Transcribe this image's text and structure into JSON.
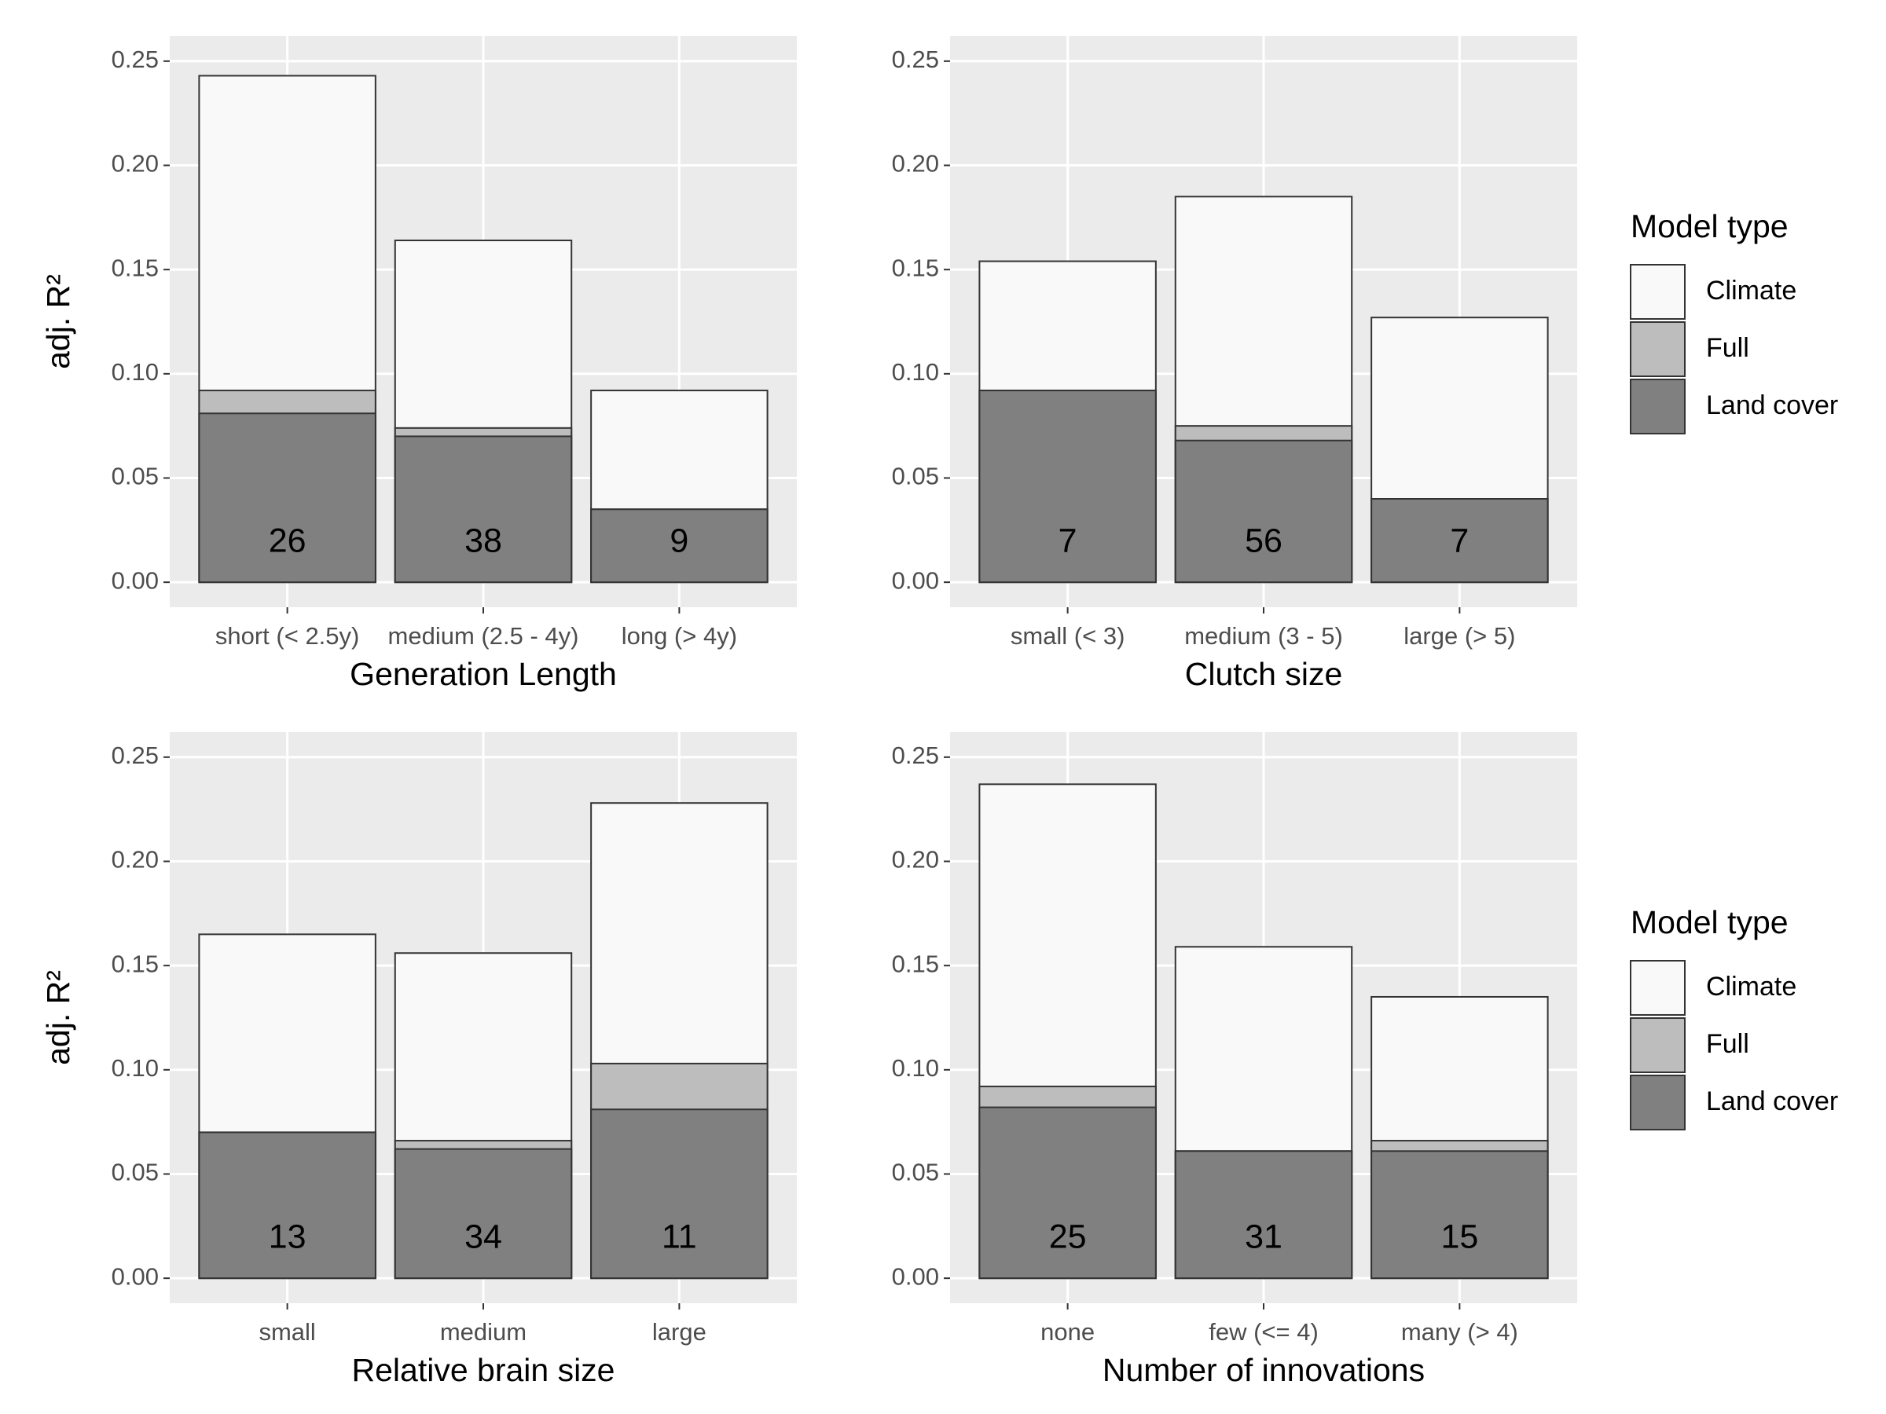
{
  "chart_data": [
    {
      "type": "bar",
      "xlabel": "Generation Length",
      "ylabel": "adj. R²",
      "categories": [
        "short (< 2.5y)",
        "medium (2.5 - 4y)",
        "long (> 4y)"
      ],
      "series": [
        {
          "color": "#f9f9f9",
          "values": [
            0.243,
            0.164,
            0.092
          ]
        },
        {
          "color": "#bdbdbd",
          "values": [
            0.092,
            0.074,
            0.035
          ]
        },
        {
          "color": "#808080",
          "values": [
            0.081,
            0.07,
            0.035
          ]
        }
      ],
      "counts": [
        26,
        38,
        9
      ],
      "ylim": [
        -0.012,
        0.262
      ],
      "yticks": [
        {
          "value": 0,
          "label": "0.00"
        },
        {
          "value": 0.05,
          "label": "0.05"
        },
        {
          "value": 0.1,
          "label": "0.10"
        },
        {
          "value": 0.15,
          "label": "0.15"
        },
        {
          "value": 0.2,
          "label": "0.20"
        },
        {
          "value": 0.25,
          "label": "0.25"
        }
      ],
      "grid": true
    },
    {
      "type": "bar",
      "xlabel": "Clutch size",
      "legend_title": "Model type",
      "legend": "right",
      "categories": [
        "small (< 3)",
        "medium (3 - 5)",
        "large (> 5)"
      ],
      "series": [
        {
          "name": "Climate",
          "color": "#f9f9f9",
          "values": [
            0.154,
            0.185,
            0.127
          ]
        },
        {
          "name": "Full",
          "color": "#bdbdbd",
          "values": [
            0.092,
            0.075,
            0.04
          ]
        },
        {
          "name": "Land cover",
          "color": "#808080",
          "values": [
            0.092,
            0.068,
            0.04
          ]
        }
      ],
      "counts": [
        7,
        56,
        7
      ],
      "ylim": [
        -0.012,
        0.262
      ],
      "yticks": [
        {
          "value": 0,
          "label": "0.00"
        },
        {
          "value": 0.05,
          "label": "0.05"
        },
        {
          "value": 0.1,
          "label": "0.10"
        },
        {
          "value": 0.15,
          "label": "0.15"
        },
        {
          "value": 0.2,
          "label": "0.20"
        },
        {
          "value": 0.25,
          "label": "0.25"
        }
      ],
      "grid": true
    },
    {
      "type": "bar",
      "xlabel": "Relative brain size",
      "ylabel": "adj. R²",
      "categories": [
        "small",
        "medium",
        "large"
      ],
      "series": [
        {
          "color": "#f9f9f9",
          "values": [
            0.165,
            0.156,
            0.228
          ]
        },
        {
          "color": "#bdbdbd",
          "values": [
            0.07,
            0.066,
            0.103
          ]
        },
        {
          "color": "#808080",
          "values": [
            0.07,
            0.062,
            0.081
          ]
        }
      ],
      "counts": [
        13,
        34,
        11
      ],
      "ylim": [
        -0.012,
        0.262
      ],
      "yticks": [
        {
          "value": 0,
          "label": "0.00"
        },
        {
          "value": 0.05,
          "label": "0.05"
        },
        {
          "value": 0.1,
          "label": "0.10"
        },
        {
          "value": 0.15,
          "label": "0.15"
        },
        {
          "value": 0.2,
          "label": "0.20"
        },
        {
          "value": 0.25,
          "label": "0.25"
        }
      ],
      "grid": true
    },
    {
      "type": "bar",
      "xlabel": "Number of innovations",
      "legend_title": "Model type",
      "legend": "right",
      "categories": [
        "none",
        "few (<= 4)",
        "many (> 4)"
      ],
      "series": [
        {
          "name": "Climate",
          "color": "#f9f9f9",
          "values": [
            0.237,
            0.159,
            0.135
          ]
        },
        {
          "name": "Full",
          "color": "#bdbdbd",
          "values": [
            0.092,
            0.061,
            0.066
          ]
        },
        {
          "name": "Land cover",
          "color": "#808080",
          "values": [
            0.082,
            0.061,
            0.061
          ]
        }
      ],
      "counts": [
        25,
        31,
        15
      ],
      "ylim": [
        -0.012,
        0.262
      ],
      "yticks": [
        {
          "value": 0,
          "label": "0.00"
        },
        {
          "value": 0.05,
          "label": "0.05"
        },
        {
          "value": 0.1,
          "label": "0.10"
        },
        {
          "value": 0.15,
          "label": "0.15"
        },
        {
          "value": 0.2,
          "label": "0.20"
        },
        {
          "value": 0.25,
          "label": "0.25"
        }
      ],
      "grid": true
    }
  ]
}
